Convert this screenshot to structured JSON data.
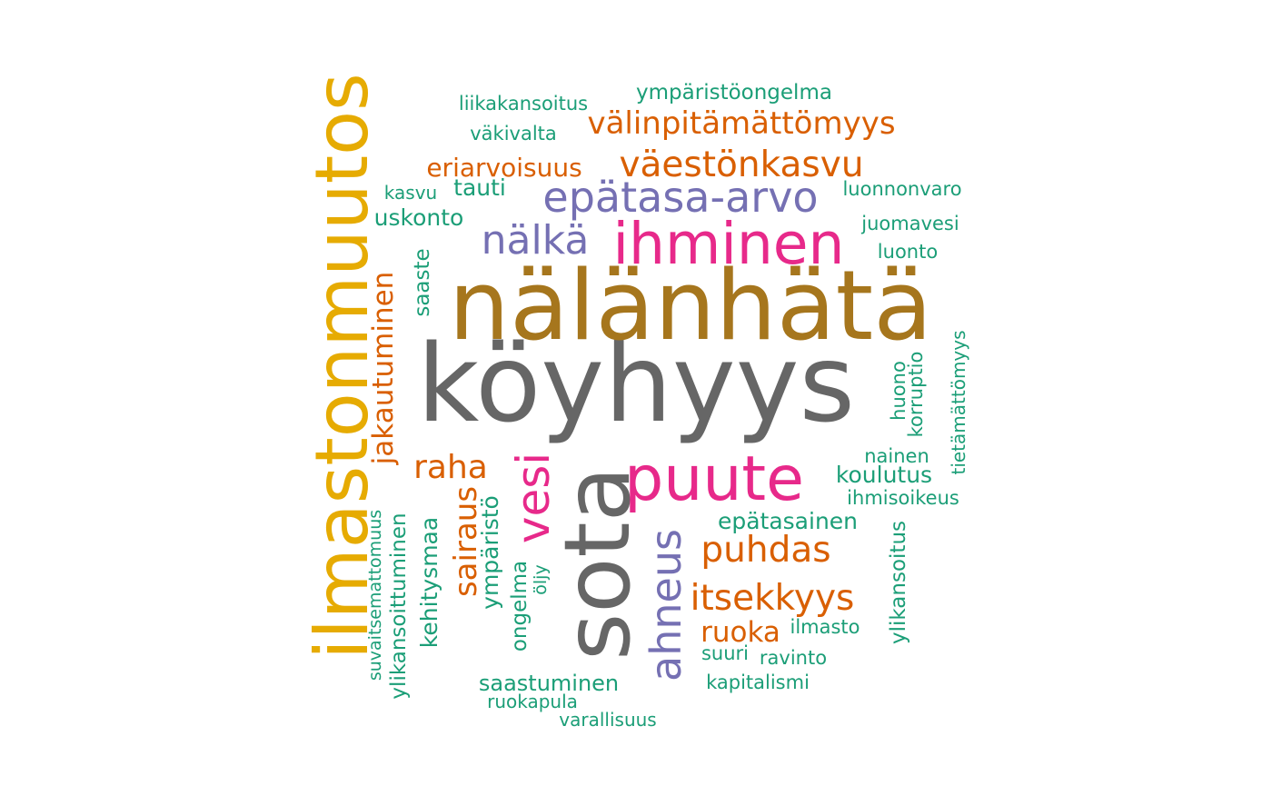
{
  "colors": {
    "teal": "#1b9e77",
    "orange": "#d95f02",
    "purple": "#7570b3",
    "magenta": "#e7298a",
    "olive": "#a6761d",
    "gold": "#e6ab02",
    "gray": "#666666"
  },
  "words": {
    "koyhyys": "köyhyys",
    "nalanhata": "nälänhätä",
    "sota": "sota",
    "ilmastonmuutos": "ilmastonmuutos",
    "ihminen": "ihminen",
    "puute": "puute",
    "vesi": "vesi",
    "epatasa_arvo": "epätasa-arvo",
    "nalka": "nälkä",
    "ahneus": "ahneus",
    "vaestonkasvu": "väestönkasvu",
    "valinpitamattomyys": "välinpitämättömyys",
    "eriarvoisuus": "eriarvoisuus",
    "raha": "raha",
    "sairaus": "sairaus",
    "jakautuminen": "jakautuminen",
    "puhdas": "puhdas",
    "itsekkyys": "itsekkyys",
    "ruoka": "ruoka",
    "ymparistoongelma": "ympäristöongelma",
    "liikakansoitus": "liikakansoitus",
    "vakivalta": "väkivalta",
    "tauti": "tauti",
    "kasvu": "kasvu",
    "uskonto": "uskonto",
    "luonnonvaro": "luonnonvaro",
    "juomavesi": "juomavesi",
    "luonto": "luonto",
    "saaste": "saaste",
    "huono": "huono",
    "korruptio": "korruptio",
    "tietamattomyys": "tietämättömyys",
    "nainen": "nainen",
    "koulutus": "koulutus",
    "ihmisoikeus": "ihmisoikeus",
    "epatasainen": "epätasainen",
    "ymparisto": "ympäristö",
    "kehitysmaa": "kehitysmaa",
    "ylikansoittuminen": "ylikansoittuminen",
    "suvaitsemattomuus": "suvaitsemattomuus",
    "ongelma": "ongelma",
    "oljy": "öljy",
    "ilmasto": "ilmasto",
    "suuri": "suuri",
    "ravinto": "ravinto",
    "ylikansoitus": "ylikansoitus",
    "kapitalismi": "kapitalismi",
    "saastuminen": "saastuminen",
    "ruokapula": "ruokapula",
    "varallisuus": "varallisuus"
  }
}
